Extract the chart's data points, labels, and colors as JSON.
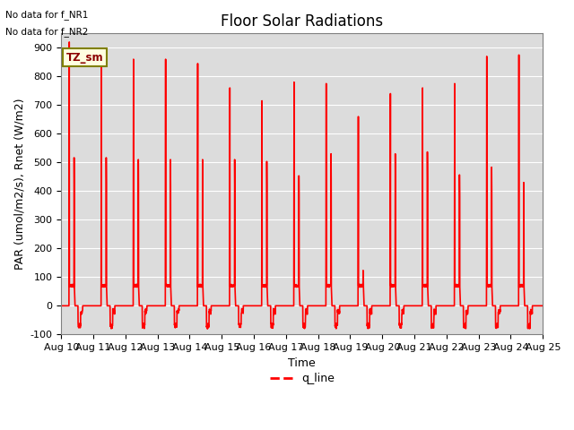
{
  "title": "Floor Solar Radiations",
  "xlabel": "Time",
  "ylabel": "PAR (umol/m2/s), Rnet (W/m2)",
  "xlim_days": [
    0,
    15
  ],
  "ylim": [
    -100,
    950
  ],
  "yticks": [
    -100,
    0,
    100,
    200,
    300,
    400,
    500,
    600,
    700,
    800,
    900
  ],
  "xtick_labels": [
    "Aug 10",
    "Aug 11",
    "Aug 12",
    "Aug 13",
    "Aug 14",
    "Aug 15",
    "Aug 16",
    "Aug 17",
    "Aug 18",
    "Aug 19",
    "Aug 20",
    "Aug 21",
    "Aug 22",
    "Aug 23",
    "Aug 24",
    "Aug 25"
  ],
  "line_color": "red",
  "line_width": 1.2,
  "legend_label": "q_line",
  "tz_label": "TZ_sm",
  "no_data_texts": [
    "No data for f_NR1",
    "No data for f_NR2"
  ],
  "bg_color": "#dcdcdc",
  "fig_bg_color": "#ffffff",
  "title_fontsize": 12,
  "axis_label_fontsize": 9,
  "tick_fontsize": 8
}
